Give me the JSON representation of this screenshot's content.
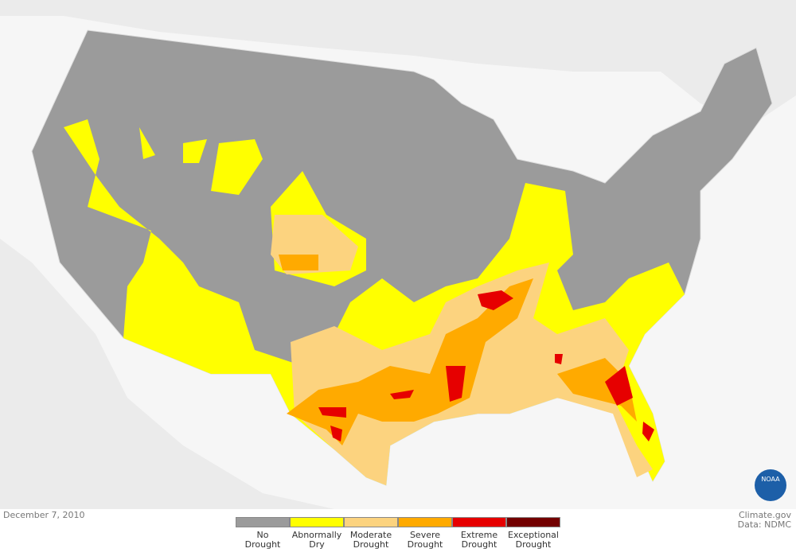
{
  "date": "December 7, 2010",
  "credit": "Climate.gov",
  "source": "Data: NDMC",
  "logo": "NOAA",
  "legend": [
    {
      "label": "No Drought",
      "color": "#9b9b9b"
    },
    {
      "label": "Abnormally Dry",
      "color": "#ffff00"
    },
    {
      "label": "Moderate Drought",
      "color": "#fcd37f"
    },
    {
      "label": "Severe Drought",
      "color": "#ffaa00"
    },
    {
      "label": "Extreme Drought",
      "color": "#e60000"
    },
    {
      "label": "Exceptional Drought",
      "color": "#730000"
    }
  ]
}
